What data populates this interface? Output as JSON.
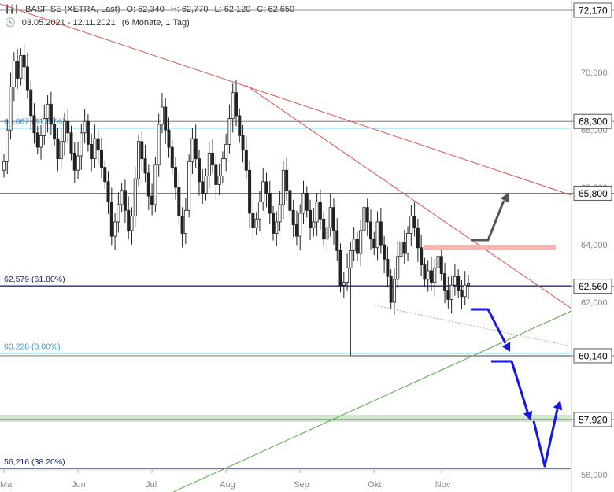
{
  "header": {
    "instrument": "BASF SE (XETRA, Last)",
    "open": "O: 62,340",
    "high": "H: 62,770",
    "low": "L: 62,120",
    "close": "C: 62,650",
    "range": "03.05.2021 - 12.11.2021",
    "period": "(6 Monate, 1 Tag)"
  },
  "chart_data": {
    "type": "candlestick",
    "y_range": [
      55.7,
      72.5
    ],
    "y_ticks": [
      {
        "v": 70.0,
        "label": "70,000"
      },
      {
        "v": 68.0,
        "label": "68,000"
      },
      {
        "v": 66.0,
        "label": "66,000"
      },
      {
        "v": 64.0,
        "label": "64,000"
      },
      {
        "v": 62.0,
        "label": "62,000"
      },
      {
        "v": 56.0,
        "label": "56,000"
      }
    ],
    "x_ticks": [
      {
        "i": 0,
        "label": "Mai"
      },
      {
        "i": 22,
        "label": "Jun"
      },
      {
        "i": 44,
        "label": "Jul"
      },
      {
        "i": 66,
        "label": "Aug"
      },
      {
        "i": 88,
        "label": "Sep"
      },
      {
        "i": 110,
        "label": "Okt"
      },
      {
        "i": 130,
        "label": "Nov"
      }
    ],
    "price_boxes": [
      {
        "v": 72.17,
        "label": "72,170"
      },
      {
        "v": 68.3,
        "label": "68,300"
      },
      {
        "v": 65.8,
        "label": "65,800"
      },
      {
        "v": 62.56,
        "label": "62,560"
      },
      {
        "v": 60.14,
        "label": "60,140"
      },
      {
        "v": 57.92,
        "label": "57,920"
      }
    ],
    "fib_levels": [
      {
        "v": 68.067,
        "label": "68,067 (61.80%)",
        "color": "#3a9bd5"
      },
      {
        "v": 62.579,
        "label": "62,579 (61.80%)",
        "color": "#1a237e"
      },
      {
        "v": 60.228,
        "label": "60,228 (0.00%)",
        "color": "#3a9bd5"
      },
      {
        "v": 56.216,
        "label": "56,216 (38.20%)",
        "color": "#1a237e"
      }
    ],
    "closes": [
      66.9,
      68.0,
      69.5,
      70.4,
      69.8,
      70.6,
      70.2,
      69.4,
      68.5,
      67.9,
      67.4,
      67.8,
      68.4,
      68.9,
      68.2,
      67.7,
      67.0,
      67.6,
      68.3,
      67.9,
      67.2,
      66.6,
      67.1,
      67.9,
      68.3,
      67.5,
      67.0,
      67.7,
      67.3,
      66.7,
      66.2,
      65.5,
      64.3,
      64.8,
      65.4,
      65.9,
      65.2,
      64.5,
      65.0,
      66.3,
      67.6,
      67.0,
      66.5,
      65.7,
      65.4,
      66.8,
      68.2,
      68.8,
      68.0,
      67.4,
      66.7,
      66.0,
      65.0,
      64.4,
      65.2,
      66.9,
      67.7,
      67.0,
      66.2,
      65.8,
      66.4,
      67.2,
      66.8,
      66.1,
      66.4,
      67.0,
      67.5,
      68.4,
      69.3,
      68.5,
      67.8,
      67.3,
      66.6,
      65.1,
      64.6,
      64.9,
      65.5,
      66.2,
      65.8,
      65.1,
      64.4,
      64.8,
      65.4,
      66.6,
      65.9,
      65.2,
      64.7,
      64.3,
      65.1,
      65.8,
      65.2,
      64.6,
      64.8,
      65.5,
      64.9,
      64.2,
      64.6,
      65.3,
      64.5,
      63.8,
      62.6,
      62.7,
      63.2,
      63.8,
      64.2,
      63.7,
      64.5,
      65.3,
      64.8,
      64.2,
      63.9,
      64.8,
      64.0,
      63.5,
      62.9,
      62.0,
      62.8,
      63.6,
      64.1,
      63.7,
      64.4,
      65.0,
      64.6,
      63.9,
      63.3,
      62.8,
      63.1,
      62.7,
      63.2,
      63.6,
      63.0,
      62.4,
      62.1,
      62.6,
      62.9,
      62.4,
      62.2,
      62.6,
      62.65
    ],
    "gap_low": 60.14,
    "gap_index": 103
  }
}
